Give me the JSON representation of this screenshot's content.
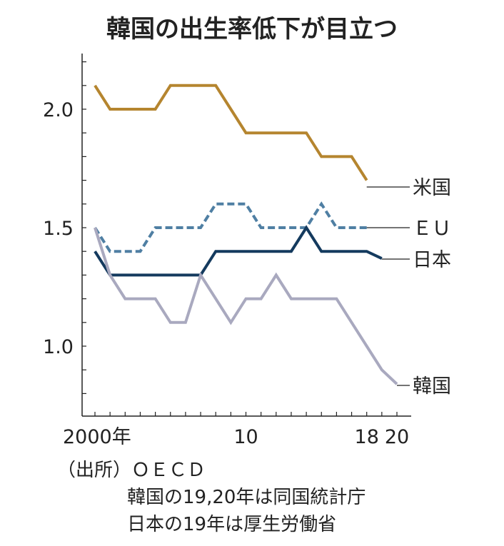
{
  "chart_data": {
    "type": "line",
    "title": "韓国の出生率低下が目立つ",
    "xlabel": "",
    "ylabel": "",
    "x": [
      2000,
      2001,
      2002,
      2003,
      2004,
      2005,
      2006,
      2007,
      2008,
      2009,
      2010,
      2011,
      2012,
      2013,
      2014,
      2015,
      2016,
      2017,
      2018,
      2019,
      2020
    ],
    "xticklabels": [
      {
        "x": 2000,
        "label": "2000年"
      },
      {
        "x": 2010,
        "label": "10"
      },
      {
        "x": 2018,
        "label": "18"
      },
      {
        "x": 2020,
        "label": "20"
      }
    ],
    "yticks": [
      {
        "y": 2.0,
        "label": "2.0"
      },
      {
        "y": 1.5,
        "label": "1.5"
      },
      {
        "y": 1.0,
        "label": "1.0"
      }
    ],
    "ylim": [
      0.7,
      2.22
    ],
    "xlim": [
      1999.2,
      2021
    ],
    "grid": false,
    "series": [
      {
        "name": "米国",
        "color": "#b5852f",
        "style": "solid",
        "values": [
          2.1,
          2.0,
          2.0,
          2.0,
          2.0,
          2.1,
          2.1,
          2.1,
          2.1,
          2.0,
          1.9,
          1.9,
          1.9,
          1.9,
          1.9,
          1.8,
          1.8,
          1.8,
          1.7,
          null,
          null
        ]
      },
      {
        "name": "ＥＵ",
        "color": "#4f7fa3",
        "style": "dashed",
        "values": [
          1.5,
          1.4,
          1.4,
          1.4,
          1.5,
          1.5,
          1.5,
          1.5,
          1.6,
          1.6,
          1.6,
          1.5,
          1.5,
          1.5,
          1.5,
          1.6,
          1.5,
          1.5,
          1.5,
          null,
          null
        ]
      },
      {
        "name": "日本",
        "color": "#143a5e",
        "style": "solid",
        "values": [
          1.4,
          1.3,
          1.3,
          1.3,
          1.3,
          1.3,
          1.3,
          1.3,
          1.4,
          1.4,
          1.4,
          1.4,
          1.4,
          1.4,
          1.5,
          1.4,
          1.4,
          1.4,
          1.4,
          1.37,
          null
        ]
      },
      {
        "name": "韓国",
        "color": "#a9a9bf",
        "style": "solid",
        "values": [
          1.5,
          1.3,
          1.2,
          1.2,
          1.2,
          1.1,
          1.1,
          1.3,
          1.2,
          1.1,
          1.2,
          1.2,
          1.3,
          1.2,
          1.2,
          1.2,
          1.2,
          1.1,
          1.0,
          0.9,
          0.84
        ]
      }
    ]
  },
  "source": {
    "line1": "（出所）ＯＥＣＤ",
    "line2": "韓国の19,20年は同国統計庁",
    "line3": "日本の19年は厚生労働省"
  }
}
